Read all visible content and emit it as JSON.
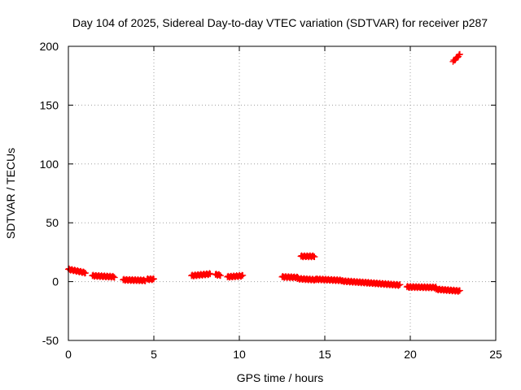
{
  "chart_data": {
    "type": "scatter",
    "title": "Day 104 of 2025, Sidereal Day-to-day VTEC variation (SDTVAR) for receiver p287",
    "xlabel": "GPS time / hours",
    "ylabel": "SDTVAR / TECUs",
    "xlim": [
      0,
      25
    ],
    "ylim": [
      -50,
      200
    ],
    "xticks": [
      0,
      5,
      10,
      15,
      20,
      25
    ],
    "yticks": [
      -50,
      0,
      50,
      100,
      150,
      200
    ],
    "grid": true,
    "marker": "plus",
    "color": "#ff0000",
    "segments": [
      {
        "x0": 0.0,
        "x1": 1.0,
        "y0": 10.5,
        "y1": 7.5
      },
      {
        "x0": 1.4,
        "x1": 2.7,
        "y0": 5.0,
        "y1": 4.0
      },
      {
        "x0": 3.2,
        "x1": 4.5,
        "y0": 1.5,
        "y1": 1.0
      },
      {
        "x0": 4.6,
        "x1": 5.0,
        "y0": 2.0,
        "y1": 2.0
      },
      {
        "x0": 7.2,
        "x1": 8.3,
        "y0": 5.0,
        "y1": 6.5
      },
      {
        "x0": 8.6,
        "x1": 8.9,
        "y0": 6.0,
        "y1": 5.5
      },
      {
        "x0": 9.3,
        "x1": 10.2,
        "y0": 4.0,
        "y1": 5.0
      },
      {
        "x0": 12.5,
        "x1": 13.4,
        "y0": 4.0,
        "y1": 3.5
      },
      {
        "x0": 13.4,
        "x1": 14.5,
        "y0": 2.5,
        "y1": 1.5
      },
      {
        "x0": 13.6,
        "x1": 14.4,
        "y0": 21.5,
        "y1": 21.5
      },
      {
        "x0": 14.5,
        "x1": 16.0,
        "y0": 2.0,
        "y1": 1.0
      },
      {
        "x0": 16.0,
        "x1": 17.5,
        "y0": 0.5,
        "y1": -1.0
      },
      {
        "x0": 17.5,
        "x1": 19.4,
        "y0": -1.0,
        "y1": -3.0
      },
      {
        "x0": 19.8,
        "x1": 21.5,
        "y0": -4.5,
        "y1": -5.0
      },
      {
        "x0": 21.5,
        "x1": 22.9,
        "y0": -6.5,
        "y1": -8.0
      },
      {
        "x0": 22.5,
        "x1": 22.9,
        "y0": 187.0,
        "y1": 193.0
      }
    ]
  }
}
